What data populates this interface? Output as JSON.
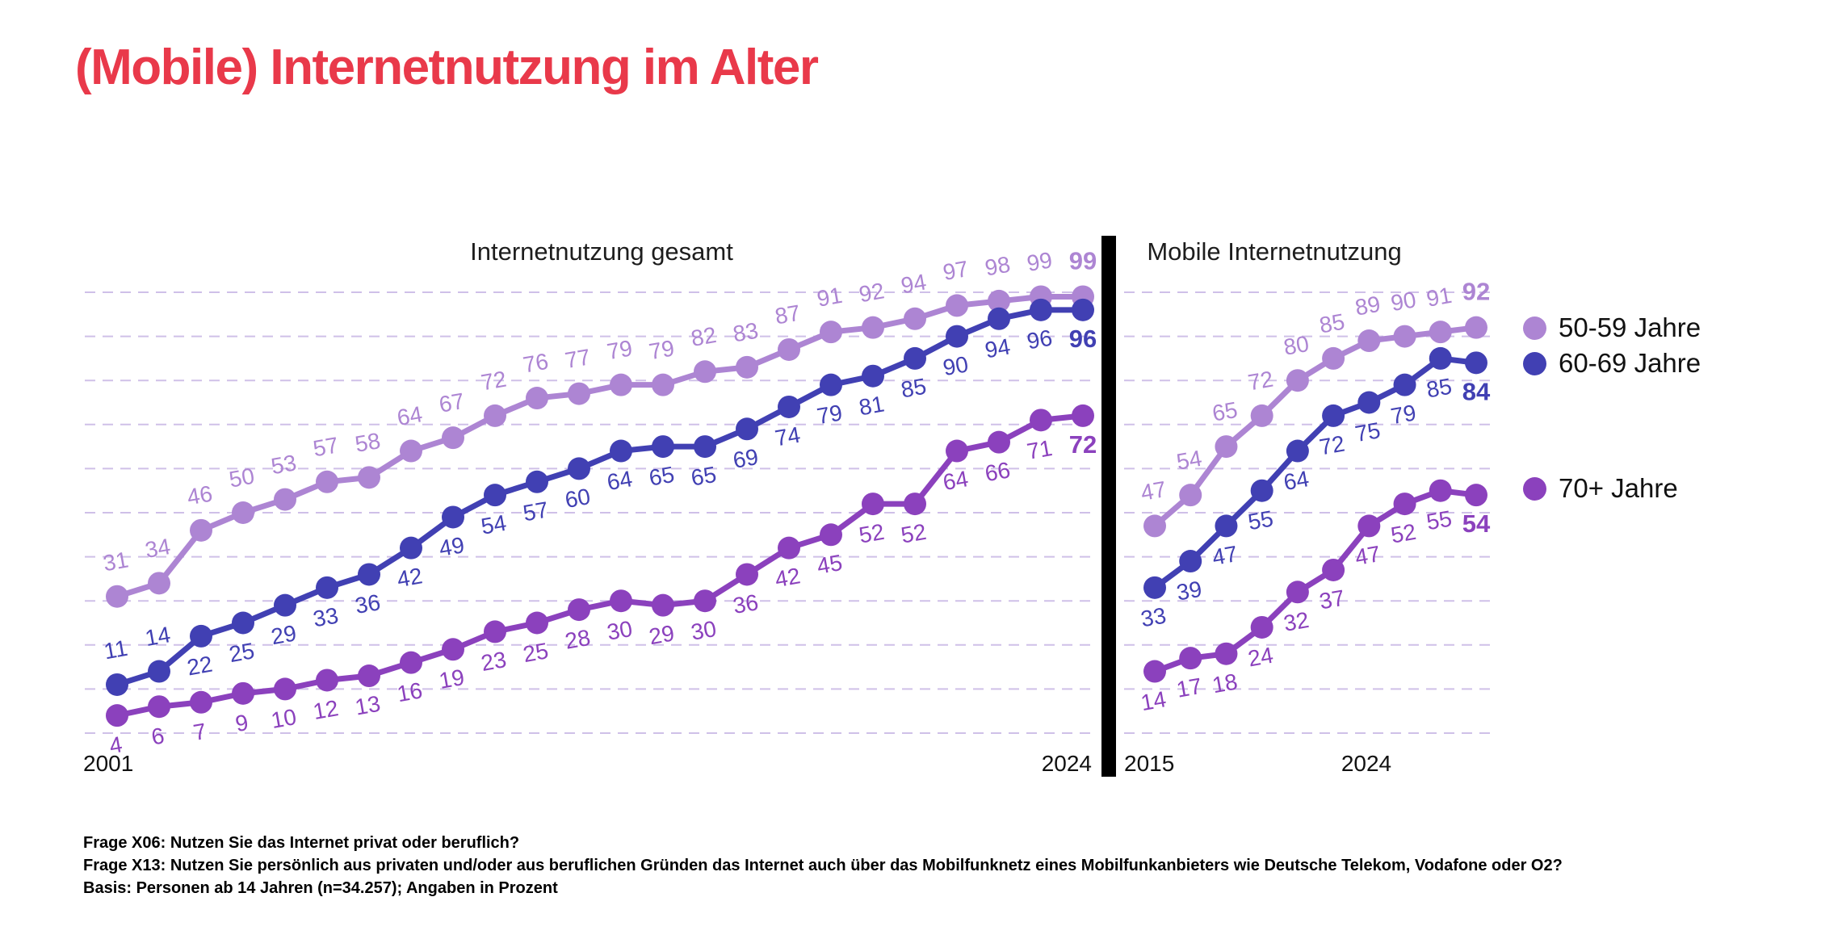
{
  "page_title": "(Mobile) Internetnutzung im Alter",
  "colors": {
    "accent_red": "#e9394a",
    "grid": "#cfc0e8",
    "separator": "#000000",
    "series_50_59": "#ad85d3",
    "series_60_69": "#4140b3",
    "series_70plus": "#8b41bd"
  },
  "legend": {
    "items": [
      {
        "label": "50-59 Jahre",
        "color": "#ad85d3"
      },
      {
        "label": "60-69 Jahre",
        "color": "#4140b3"
      },
      {
        "label": "70+ Jahre",
        "color": "#8b41bd"
      }
    ]
  },
  "chart_data": [
    {
      "type": "line",
      "title": "Internetnutzung gesamt",
      "x_start_label": "2001",
      "x_end_label": "2024",
      "x": [
        2001,
        2002,
        2003,
        2004,
        2005,
        2006,
        2007,
        2008,
        2009,
        2010,
        2011,
        2012,
        2013,
        2014,
        2015,
        2016,
        2017,
        2018,
        2019,
        2020,
        2021,
        2022,
        2023,
        2024
      ],
      "ylim": [
        0,
        100
      ],
      "grid": "horizontal dashed every 10",
      "legend_position": "right",
      "series": [
        {
          "name": "50-59 Jahre",
          "color": "#ad85d3",
          "label_position": "above",
          "values": [
            31,
            34,
            46,
            50,
            53,
            57,
            58,
            64,
            67,
            72,
            76,
            77,
            79,
            79,
            82,
            83,
            87,
            91,
            92,
            94,
            97,
            98,
            99,
            99
          ]
        },
        {
          "name": "60-69 Jahre",
          "color": "#4140b3",
          "label_position": "below",
          "label_above_indices": [
            0,
            1
          ],
          "values": [
            11,
            14,
            22,
            25,
            29,
            33,
            36,
            42,
            49,
            54,
            57,
            60,
            64,
            65,
            65,
            69,
            74,
            79,
            81,
            85,
            90,
            94,
            96,
            96
          ]
        },
        {
          "name": "70+ Jahre",
          "color": "#8b41bd",
          "label_position": "below",
          "values": [
            4,
            6,
            7,
            9,
            10,
            12,
            13,
            16,
            19,
            23,
            25,
            28,
            30,
            29,
            30,
            36,
            42,
            45,
            52,
            52,
            64,
            66,
            71,
            72
          ]
        }
      ]
    },
    {
      "type": "line",
      "title": "Mobile Internetnutzung",
      "x_start_label": "2015",
      "x_end_label": "2024",
      "x": [
        2015,
        2016,
        2017,
        2018,
        2019,
        2020,
        2021,
        2022,
        2023,
        2024
      ],
      "ylim": [
        0,
        100
      ],
      "grid": "horizontal dashed every 10",
      "series": [
        {
          "name": "50-59 Jahre",
          "color": "#ad85d3",
          "label_position": "above",
          "values": [
            47,
            54,
            65,
            72,
            80,
            85,
            89,
            90,
            91,
            92
          ]
        },
        {
          "name": "60-69 Jahre",
          "color": "#4140b3",
          "label_position": "below",
          "values": [
            33,
            39,
            47,
            55,
            64,
            72,
            75,
            79,
            85,
            84
          ]
        },
        {
          "name": "70+ Jahre",
          "color": "#8b41bd",
          "label_position": "below",
          "values": [
            14,
            17,
            18,
            24,
            32,
            37,
            47,
            52,
            55,
            54
          ]
        }
      ]
    }
  ],
  "footnotes": {
    "line1": "Frage X06: Nutzen Sie das Internet privat oder beruflich?",
    "line2": "Frage X13: Nutzen Sie persönlich aus privaten und/oder aus beruflichen Gründen das Internet auch über das Mobilfunknetz eines Mobilfunkanbieters wie Deutsche Telekom, Vodafone oder O2?",
    "line3": "Basis: Personen ab 14 Jahren (n=34.257); Angaben in Prozent"
  }
}
